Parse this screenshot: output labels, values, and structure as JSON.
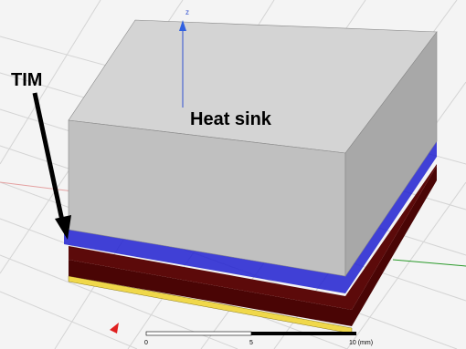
{
  "viewport": {
    "axis_label": "z"
  },
  "annotations": {
    "tim": "TIM",
    "heat_sink": "Heat sink"
  },
  "scale_bar": {
    "labels": [
      "0",
      "5",
      "10 (mm)"
    ]
  }
}
